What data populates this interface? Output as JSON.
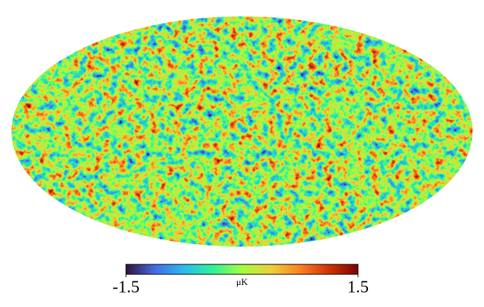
{
  "chart_data": {
    "type": "map",
    "projection": "mollweide",
    "colormap": "turbo",
    "colorbar": {
      "label": "μK",
      "lim": [
        -1.5,
        1.5
      ],
      "ticks": [
        -1.5,
        1.5
      ]
    }
  }
}
